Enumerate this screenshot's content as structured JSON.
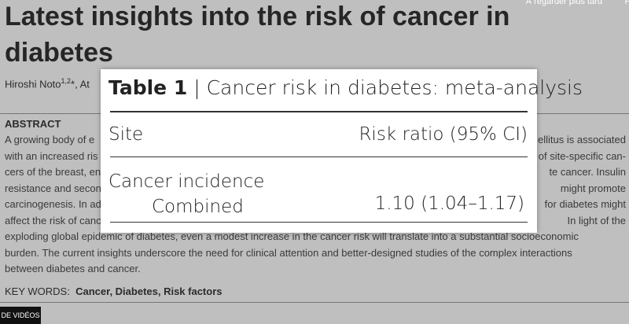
{
  "overlay": {
    "watch_later": "À regarder plus tard",
    "cut_right": "P",
    "videos": "DE VIDÉOS"
  },
  "header": {
    "title_lines": [
      "Latest insights into the risk of cancer in",
      "diabetes"
    ],
    "author": "Hiroshi Noto",
    "author_sup": "1,2",
    "author_rest": "*, At"
  },
  "abstract": {
    "heading": "ABSTRACT",
    "lines_left": [
      "A growing body of e",
      "with an increased ris",
      "cers of the breast, en",
      "resistance and secon",
      "carcinogenesis. In ad",
      "affect the risk of canc"
    ],
    "lines_right": [
      "ellitus is associated",
      "of site-specific can-",
      "te cancer. Insulin",
      "might promote",
      "for diabetes might",
      "In light of the"
    ],
    "lines_full": [
      "exploding global epidemic of diabetes, even a modest increase in the cancer risk will translate into a substantial socioeconomic",
      "burden. The current insights underscore the need for clinical attention and better-designed studies of the complex interactions",
      "between diabetes and cancer."
    ]
  },
  "keywords": {
    "label": "KEY WORDS:",
    "text": "Cancer, Diabetes, Risk factors"
  },
  "table": {
    "label": "Table 1",
    "separator": "|",
    "caption": "Cancer risk in diabetes: meta-analysis",
    "header": [
      "Site",
      "Risk ratio (95% CI)"
    ],
    "group": "Cancer incidence",
    "rows": [
      [
        "Combined",
        "1.10 (1.04–1.17)"
      ]
    ]
  }
}
